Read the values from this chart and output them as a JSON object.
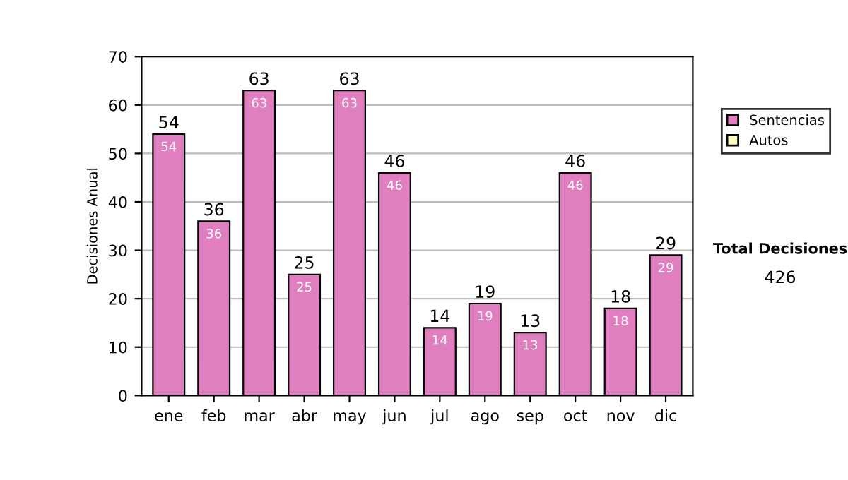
{
  "chart_data": {
    "type": "bar",
    "ylabel": "Decisiones Anual",
    "categories": [
      "ene",
      "feb",
      "mar",
      "abr",
      "may",
      "jun",
      "jul",
      "ago",
      "sep",
      "oct",
      "nov",
      "dic"
    ],
    "series": [
      {
        "name": "Sentencias",
        "color": "#e07fc0",
        "values": [
          54,
          36,
          63,
          25,
          63,
          46,
          14,
          19,
          13,
          46,
          18,
          29
        ]
      },
      {
        "name": "Autos",
        "color": "#ffffc0",
        "values": [
          null,
          null,
          null,
          null,
          null,
          null,
          null,
          null,
          null,
          null,
          null,
          null
        ]
      }
    ],
    "stacked": true,
    "totals": [
      "54",
      "36",
      "63",
      "25",
      "63",
      "46",
      "14",
      "19",
      "13",
      "46",
      "18",
      "29"
    ],
    "ylim": [
      0,
      70
    ],
    "yticks": [
      0,
      10,
      20,
      30,
      40,
      50,
      60,
      70
    ],
    "grid": "y",
    "legend": "right",
    "data_labels": true,
    "annotations": [
      "Total Decisiones",
      "426"
    ]
  }
}
